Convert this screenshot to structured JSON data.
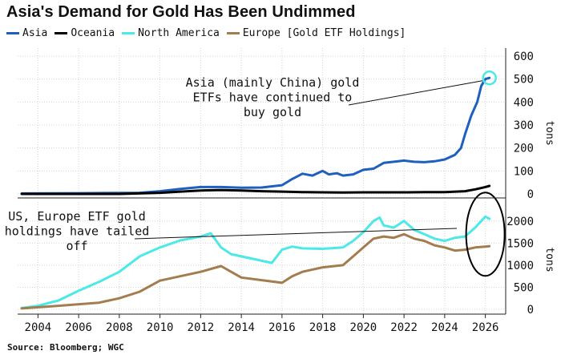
{
  "header": {
    "title": "Asia's Demand for Gold Has Been Undimmed"
  },
  "legend": [
    {
      "label": "Asia",
      "color": "#1f5fbf"
    },
    {
      "label": "Oceania",
      "color": "#000000"
    },
    {
      "label": "North America",
      "color": "#4de8e8"
    },
    {
      "label": "Europe [Gold ETF Holdings]",
      "color": "#a37d4f"
    }
  ],
  "footer": {
    "source": "Source: Bloomberg; WGC"
  },
  "chart_data": [
    {
      "type": "line",
      "ylabel": "tons",
      "ylim": [
        0,
        600
      ],
      "yticks": [
        "0",
        "100",
        "200",
        "300",
        "400",
        "500",
        "600"
      ],
      "xlim": [
        2003,
        2027
      ],
      "annotation": "Asia (mainly China) gold ETFs have continued to buy gold",
      "series": [
        {
          "name": "Asia",
          "color": "#1f5fbf",
          "x": [
            2003.2,
            2006,
            2009,
            2010,
            2011,
            2012,
            2013,
            2014,
            2015,
            2016,
            2016.5,
            2017,
            2017.5,
            2018,
            2018.3,
            2018.7,
            2019,
            2019.5,
            2020,
            2020.5,
            2021,
            2021.5,
            2022,
            2022.5,
            2023,
            2023.5,
            2024,
            2024.5,
            2024.8,
            2025,
            2025.3,
            2025.6,
            2025.8,
            2026,
            2026.2
          ],
          "y": [
            2,
            3,
            5,
            12,
            22,
            30,
            30,
            27,
            28,
            38,
            65,
            88,
            80,
            100,
            85,
            90,
            80,
            85,
            105,
            110,
            135,
            140,
            145,
            140,
            138,
            142,
            150,
            170,
            200,
            260,
            340,
            400,
            470,
            500,
            505
          ]
        },
        {
          "name": "Oceania",
          "color": "#000000",
          "x": [
            2003.2,
            2008,
            2010,
            2011,
            2012,
            2013,
            2014,
            2015,
            2016,
            2017,
            2018,
            2019,
            2020,
            2021,
            2022,
            2023,
            2024,
            2025,
            2025.5,
            2026,
            2026.2
          ],
          "y": [
            0,
            0,
            5,
            10,
            15,
            17,
            15,
            12,
            10,
            8,
            7,
            6,
            7,
            7,
            7,
            8,
            8,
            12,
            20,
            30,
            35
          ]
        }
      ]
    },
    {
      "type": "line",
      "ylabel": "tons",
      "ylim": [
        0,
        2250
      ],
      "yticks": [
        "0",
        "500",
        "1000",
        "1500",
        "2000"
      ],
      "xlim": [
        2003,
        2027
      ],
      "xticks": [
        "2004",
        "2006",
        "2008",
        "2010",
        "2012",
        "2014",
        "2016",
        "2018",
        "2020",
        "2022",
        "2024",
        "2026"
      ],
      "annotation": "US, Europe ETF gold holdings have tailed off",
      "series": [
        {
          "name": "North America",
          "color": "#4de8e8",
          "x": [
            2003.2,
            2004,
            2005,
            2006,
            2007,
            2008,
            2009,
            2010,
            2011,
            2012,
            2012.5,
            2013,
            2013.5,
            2014,
            2015,
            2015.5,
            2016,
            2016.5,
            2017,
            2018,
            2019,
            2019.5,
            2020,
            2020.5,
            2020.8,
            2021,
            2021.5,
            2022,
            2022.5,
            2023,
            2023.5,
            2024,
            2024.5,
            2025,
            2025.5,
            2026,
            2026.2
          ],
          "y": [
            30,
            80,
            200,
            420,
            620,
            850,
            1200,
            1400,
            1560,
            1650,
            1720,
            1400,
            1250,
            1200,
            1100,
            1050,
            1350,
            1420,
            1380,
            1370,
            1400,
            1550,
            1750,
            2000,
            2080,
            1900,
            1850,
            2000,
            1800,
            1700,
            1600,
            1550,
            1620,
            1650,
            1850,
            2100,
            2050
          ]
        },
        {
          "name": "Europe [Gold ETF Holdings]",
          "color": "#a37d4f",
          "x": [
            2003.2,
            2005,
            2007,
            2008,
            2009,
            2010,
            2011,
            2012,
            2013,
            2013.5,
            2014,
            2015,
            2016,
            2016.5,
            2017,
            2018,
            2019,
            2019.5,
            2020,
            2020.5,
            2021,
            2021.5,
            2022,
            2022.5,
            2023,
            2023.5,
            2024,
            2024.5,
            2025,
            2025.5,
            2026,
            2026.2
          ],
          "y": [
            20,
            80,
            150,
            250,
            400,
            650,
            750,
            850,
            980,
            850,
            720,
            660,
            600,
            750,
            850,
            950,
            1000,
            1200,
            1400,
            1600,
            1650,
            1620,
            1700,
            1600,
            1550,
            1450,
            1400,
            1330,
            1350,
            1400,
            1420,
            1430
          ]
        }
      ]
    }
  ]
}
